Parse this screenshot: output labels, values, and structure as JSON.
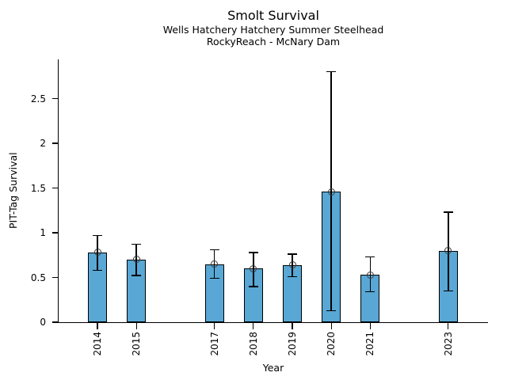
{
  "chart_data": {
    "type": "bar",
    "title": "Smolt Survival",
    "subtitle": [
      "Wells Hatchery Hatchery Summer Steelhead",
      "RockyReach - McNary Dam"
    ],
    "xlabel": "Year",
    "ylabel": "PIT-Tag Survival",
    "categories": [
      "2014",
      "2015",
      "2017",
      "2018",
      "2019",
      "2020",
      "2021",
      "2023"
    ],
    "values": [
      0.78,
      0.7,
      0.65,
      0.6,
      0.64,
      1.46,
      0.53,
      0.8
    ],
    "error_low": [
      0.58,
      0.52,
      0.49,
      0.4,
      0.51,
      0.13,
      0.34,
      0.35
    ],
    "error_high": [
      0.97,
      0.87,
      0.81,
      0.78,
      0.76,
      2.8,
      0.73,
      1.23
    ],
    "yticks": [
      0,
      0.5,
      1,
      1.5,
      2,
      2.5
    ],
    "ytick_labels": [
      "0",
      "0.5",
      "1",
      "1.5",
      "2",
      "2.5"
    ],
    "ylim": [
      0,
      2.94
    ],
    "xlim_years": [
      2013,
      2024
    ],
    "missing_years": [
      "2016",
      "2022"
    ],
    "grid": false,
    "legend": false,
    "marker": "open-circle",
    "bar_color": "#58A7D5",
    "bar_edge_color": "#000000",
    "errorbar_color": "#000000"
  }
}
